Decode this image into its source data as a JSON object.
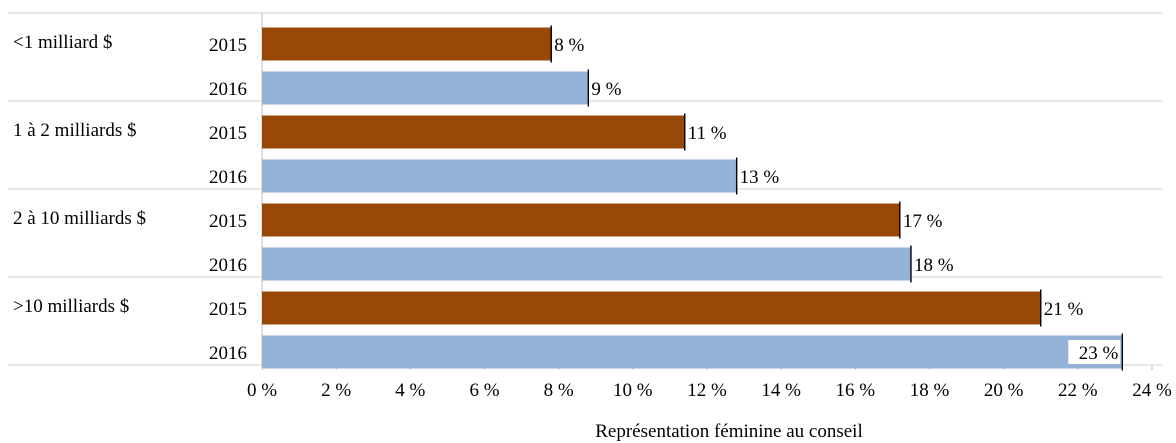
{
  "chart_data": {
    "type": "bar",
    "orientation": "horizontal",
    "groups": [
      {
        "name": "<1 milliard $",
        "bars": [
          {
            "year": "2015",
            "value": 7.8,
            "label": "8 %"
          },
          {
            "year": "2016",
            "value": 8.8,
            "label": "9 %"
          }
        ]
      },
      {
        "name": "1 à 2 milliards $",
        "bars": [
          {
            "year": "2015",
            "value": 11.4,
            "label": "11 %"
          },
          {
            "year": "2016",
            "value": 12.8,
            "label": "13 %"
          }
        ]
      },
      {
        "name": "2 à 10 milliards $",
        "bars": [
          {
            "year": "2015",
            "value": 17.2,
            "label": "17 %"
          },
          {
            "year": "2016",
            "value": 17.5,
            "label": "18 %"
          }
        ]
      },
      {
        "name": ">10 milliards $",
        "bars": [
          {
            "year": "2015",
            "value": 21.0,
            "label": "21 %"
          },
          {
            "year": "2016",
            "value": 23.2,
            "label": "23 %"
          }
        ]
      }
    ],
    "xticks": [
      "0 %",
      "2 %",
      "4 %",
      "6 %",
      "8 %",
      "10 %",
      "12 %",
      "14 %",
      "16 %",
      "18 %",
      "20 %",
      "22 %",
      "24 %"
    ],
    "xlim": [
      0,
      24
    ],
    "xlabel": "Représentation féminine au conseil",
    "ylabel": "",
    "title": "",
    "grid": false,
    "legend": "none",
    "colors": {
      "2015": "#984807",
      "2016": "#95b3d7"
    }
  }
}
